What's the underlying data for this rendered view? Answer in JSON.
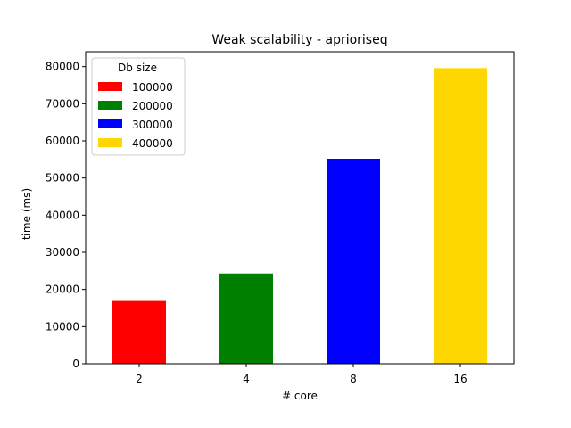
{
  "chart_data": {
    "type": "bar",
    "title": "Weak scalability - aprioriseq",
    "xlabel": "# core",
    "ylabel": "time (ms)",
    "categories": [
      "2",
      "4",
      "8",
      "16"
    ],
    "values": [
      16900,
      24300,
      55200,
      79600
    ],
    "bar_colors": [
      "#ff0000",
      "#008000",
      "#0000ff",
      "#ffd700"
    ],
    "ylim": [
      0,
      84000
    ],
    "yticks": [
      0,
      10000,
      20000,
      30000,
      40000,
      50000,
      60000,
      70000,
      80000
    ],
    "grid": false,
    "legend": {
      "title": "Db size",
      "placement": "top-left",
      "entries": [
        {
          "label": "100000",
          "color": "#ff0000"
        },
        {
          "label": "200000",
          "color": "#008000"
        },
        {
          "label": "300000",
          "color": "#0000ff"
        },
        {
          "label": "400000",
          "color": "#ffd700"
        }
      ]
    }
  }
}
